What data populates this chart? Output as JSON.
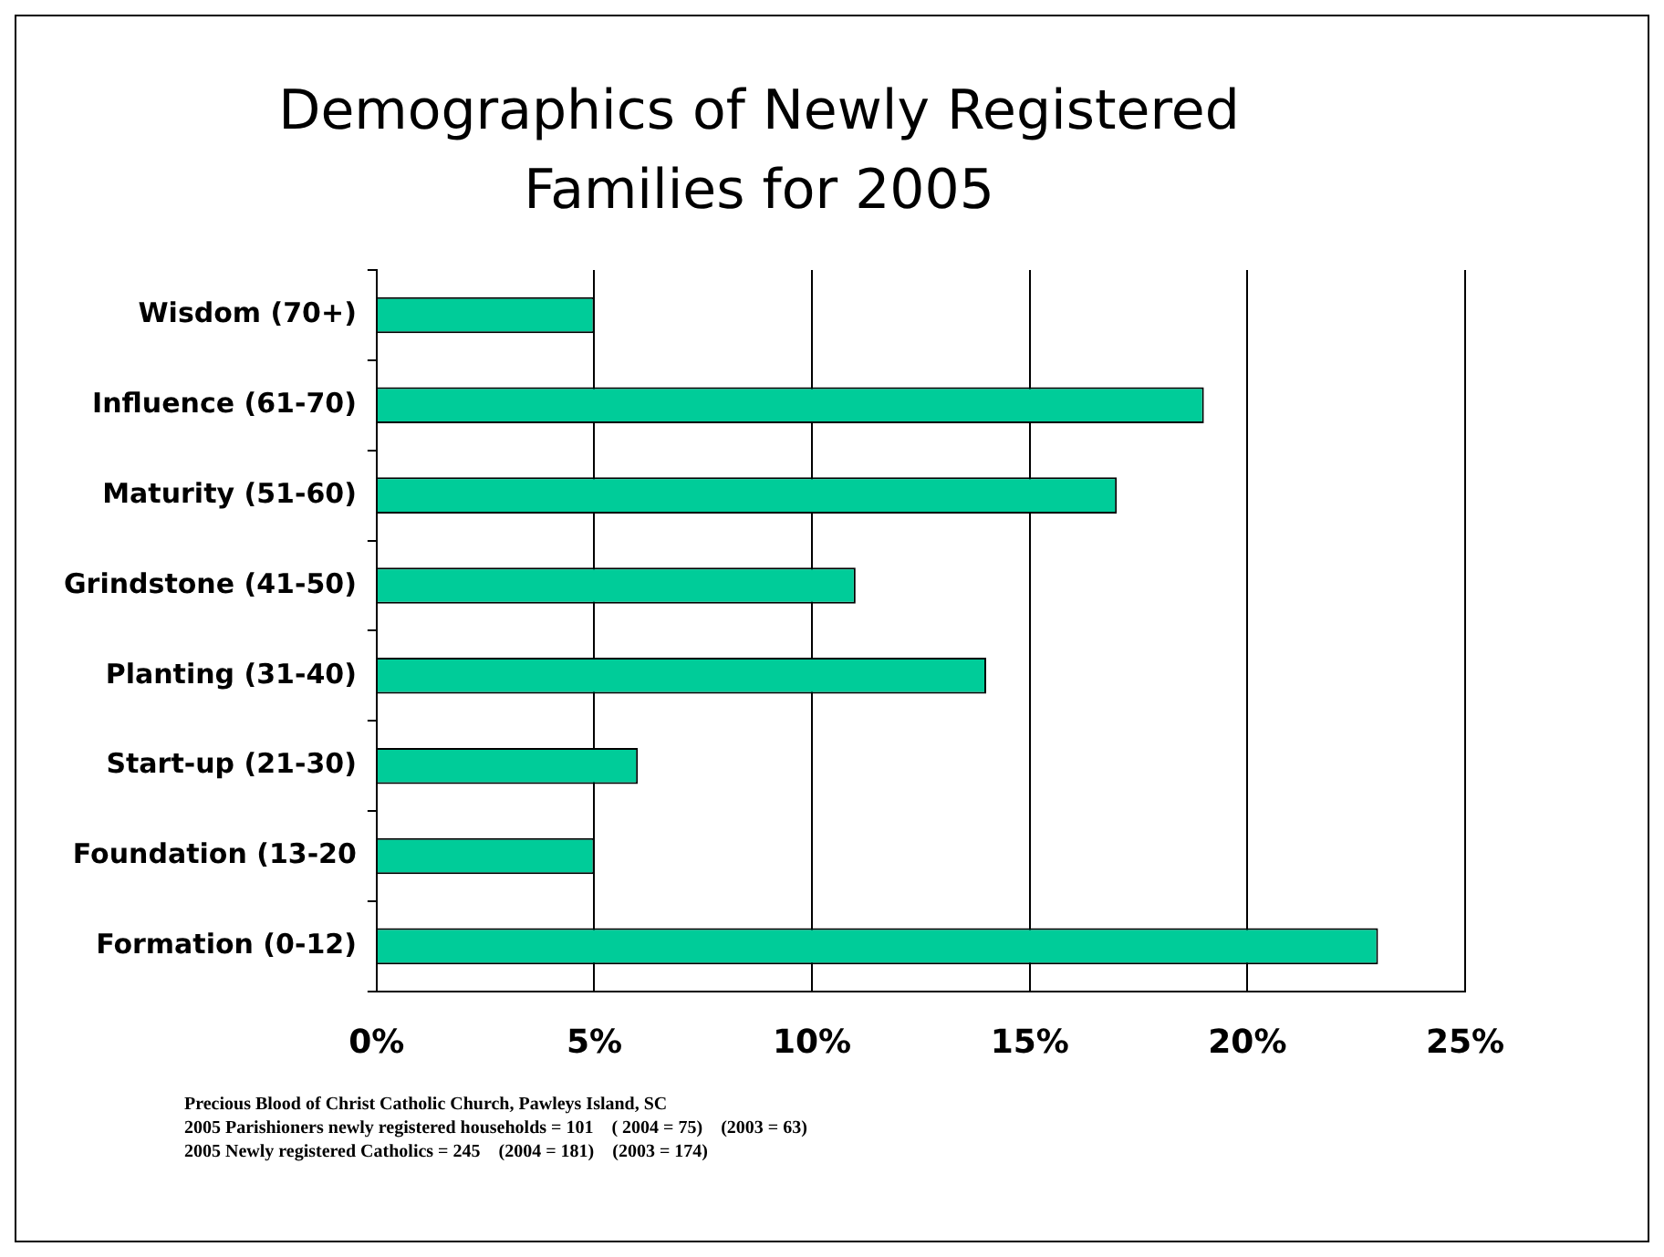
{
  "chart_data": {
    "type": "bar",
    "orientation": "horizontal",
    "title": [
      "Demographics of Newly Registered",
      "Families for 2005"
    ],
    "categories": [
      "Wisdom (70+)",
      "Influence (61-70)",
      "Maturity (51-60)",
      "Grindstone (41-50)",
      "Planting (31-40)",
      "Start-up (21-30)",
      "Foundation (13-20",
      "Formation (0-12)"
    ],
    "values": [
      5,
      19,
      17,
      11,
      14,
      6,
      5,
      23
    ],
    "color": "#00cc99",
    "xlim": [
      0,
      25
    ],
    "xticks": [
      {
        "value": 0,
        "label": "0%"
      },
      {
        "value": 5,
        "label": "5%"
      },
      {
        "value": 10,
        "label": "10%"
      },
      {
        "value": 15,
        "label": "15%"
      },
      {
        "value": 20,
        "label": "20%"
      },
      {
        "value": 25,
        "label": "25%"
      }
    ],
    "grid": "x",
    "legend": false,
    "annotations": [
      "Precious Blood of Christ Catholic Church, Pawleys Island, SC",
      "2005 Parishioners newly registered households = 101    ( 2004 = 75)    (2003 = 63)",
      "2005 Newly registered Catholics = 245    (2004 = 181)    (2003 = 174)"
    ]
  }
}
